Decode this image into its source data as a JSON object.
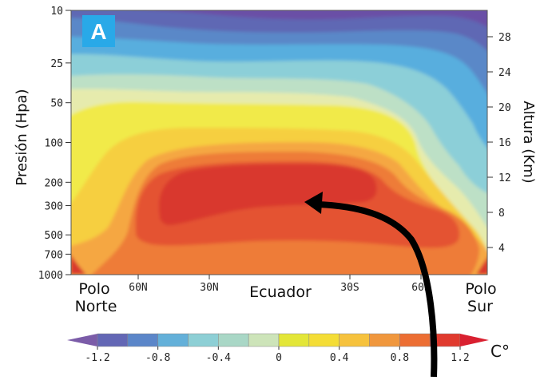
{
  "chart_data": {
    "type": "heatmap",
    "panel_label": "A",
    "ylabel_left": "Presión (Hpa)",
    "ylabel_right": "Altura (Km)",
    "pressure_ticks": [
      "10",
      "25",
      "50",
      "100",
      "200",
      "300",
      "500",
      "700",
      "1000"
    ],
    "height_ticks": [
      "28",
      "24",
      "20",
      "16",
      "12",
      "8",
      "4"
    ],
    "x_ticks": [
      "60N",
      "30N",
      "30S",
      "60S"
    ],
    "x_end_labels": {
      "left_line1": "Polo",
      "left_line2": "Norte",
      "center": "Ecuador",
      "right_line1": "Polo",
      "right_line2": "Sur"
    },
    "colorbar": {
      "unit": "C°",
      "tick_labels": [
        "-1.2",
        "-0.8",
        "-0.4",
        "0",
        "0.4",
        "0.8",
        "1.2"
      ],
      "min": -1.4,
      "max": 1.4,
      "colors": [
        "#7b5ca8",
        "#6367b5",
        "#5b86c9",
        "#63b0d9",
        "#8dcfd5",
        "#a9d7c6",
        "#cde4b9",
        "#e3e638",
        "#f4dd36",
        "#f6c23d",
        "#f0973d",
        "#ec6e33",
        "#e03a2e",
        "#d92030"
      ]
    },
    "contour_levels": [
      {
        "level": -1.2,
        "color": "#6a4fa6"
      },
      {
        "level": -1.0,
        "color": "#5f67b4"
      },
      {
        "level": -0.8,
        "color": "#5a88c8"
      },
      {
        "level": -0.6,
        "color": "#59aede"
      },
      {
        "level": -0.4,
        "color": "#8ccfd8"
      },
      {
        "level": -0.2,
        "color": "#bde0c6"
      },
      {
        "level": 0.0,
        "color": "#e6ebad"
      },
      {
        "level": 0.2,
        "color": "#f1ea4a"
      },
      {
        "level": 0.4,
        "color": "#f6cf3f"
      },
      {
        "level": 0.6,
        "color": "#f5a742"
      },
      {
        "level": 0.8,
        "color": "#ee7c37"
      },
      {
        "level": 1.0,
        "color": "#e45332"
      },
      {
        "level": 1.2,
        "color": "#d9382d"
      }
    ],
    "annotation": "arrow pointing to upper tropospheric tropical warming maximum"
  }
}
